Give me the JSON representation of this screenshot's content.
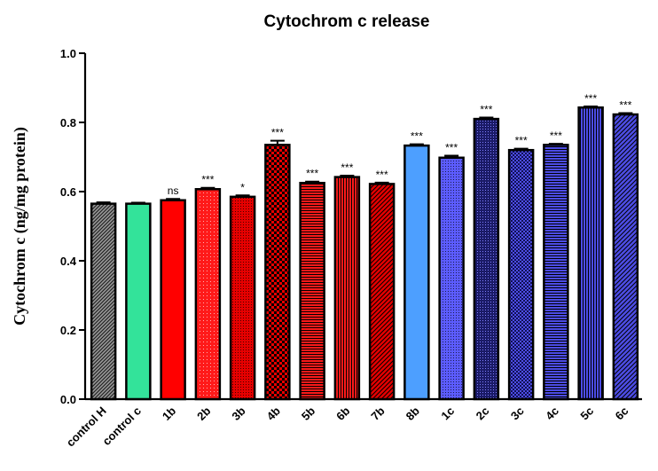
{
  "chart_data": {
    "type": "bar",
    "title": "Cytochrom c release",
    "xlabel": "",
    "ylabel": "Cytochrom c (ng/mg protein)",
    "ylim": [
      0,
      1.0
    ],
    "yticks": [
      "0.0",
      "0.2",
      "0.4",
      "0.6",
      "0.8",
      "1.0"
    ],
    "grid": false,
    "categories": [
      "control H",
      "control c",
      "1b",
      "2b",
      "3b",
      "4b",
      "5b",
      "6b",
      "7b",
      "8b",
      "1c",
      "2c",
      "3c",
      "4c",
      "5c",
      "6c"
    ],
    "values": [
      0.565,
      0.565,
      0.575,
      0.607,
      0.585,
      0.735,
      0.625,
      0.642,
      0.622,
      0.733,
      0.698,
      0.81,
      0.72,
      0.735,
      0.843,
      0.823
    ],
    "errors": [
      0.004,
      0.003,
      0.004,
      0.004,
      0.004,
      0.012,
      0.004,
      0.004,
      0.004,
      0.004,
      0.006,
      0.004,
      0.004,
      0.003,
      0.003,
      0.004
    ],
    "significance": [
      "",
      "",
      "ns",
      "***",
      "*",
      "***",
      "***",
      "***",
      "***",
      "***",
      "***",
      "***",
      "***",
      "***",
      "***",
      "***"
    ],
    "colors": [
      "#7a7a7a",
      "#33e39a",
      "#ff0000",
      "#ff1a1a",
      "#e60000",
      "#e60000",
      "#ff1a1a",
      "#ff1a1a",
      "#e60000",
      "#4d9fff",
      "#5c5cff",
      "#3333cc",
      "#4d4de6",
      "#4d4de6",
      "#4d4de6",
      "#4d4de6"
    ],
    "patterns": [
      "diag-dense",
      "solid",
      "solid",
      "dots-light",
      "dots-fine",
      "checker",
      "hlines",
      "vlines",
      "diag",
      "solid",
      "dots-fine",
      "dots-dense",
      "checker-small",
      "hlines",
      "vlines",
      "diag"
    ]
  }
}
